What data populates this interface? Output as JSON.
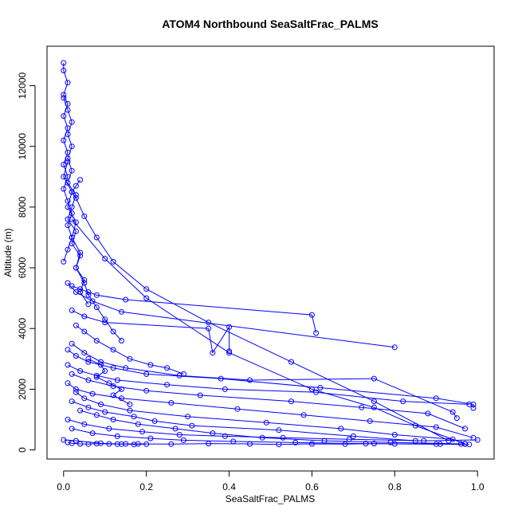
{
  "chart_data": {
    "type": "line",
    "title": "ATOM4 Northbound SeaSaltFrac_PALMS",
    "xlabel": "SeaSaltFrac_PALMS",
    "ylabel": "Altitude (m)",
    "xlim": [
      -0.04,
      1.04
    ],
    "ylim": [
      -300,
      13300
    ],
    "xticks": [
      "0.0",
      "0.2",
      "0.4",
      "0.6",
      "0.8",
      "1.0"
    ],
    "yticks": [
      "0",
      "2000",
      "4000",
      "6000",
      "8000",
      "10000",
      "12000"
    ],
    "grid": false,
    "legend": "none",
    "series_color": "#0000ff",
    "marker": "open-circle",
    "series": [
      {
        "x": [
          0.0,
          0.0,
          0.01,
          0.0,
          0.01,
          0.0,
          0.01,
          0.0,
          0.01,
          0.0,
          0.01,
          0.0,
          0.01,
          0.02,
          0.01,
          0.02,
          0.01,
          0.0
        ],
        "y": [
          12750,
          12500,
          12100,
          11700,
          11400,
          11000,
          10600,
          10200,
          9800,
          9400,
          9000,
          8600,
          8200,
          7800,
          7400,
          7000,
          6600,
          6200
        ]
      },
      {
        "x": [
          0.0,
          0.01,
          0.02,
          0.01,
          0.02,
          0.01,
          0.02,
          0.01,
          0.03,
          0.02,
          0.01,
          0.03,
          0.02,
          0.04,
          0.03,
          0.05,
          0.04,
          0.06
        ],
        "y": [
          11600,
          11200,
          10800,
          10400,
          10000,
          9600,
          9200,
          8800,
          8400,
          8000,
          7600,
          7200,
          6800,
          6400,
          6000,
          5600,
          5200,
          4800
        ]
      },
      {
        "x": [
          0.01,
          0.0,
          0.02,
          0.01,
          0.03,
          0.02,
          0.04,
          0.03,
          0.05,
          0.06,
          0.08,
          0.1,
          0.12,
          0.14
        ],
        "y": [
          9500,
          9000,
          8500,
          8000,
          7500,
          7000,
          6500,
          6000,
          5500,
          5100,
          4700,
          4300,
          3900,
          3600
        ]
      },
      {
        "x": [
          0.02,
          0.04,
          0.06,
          0.08,
          0.15,
          0.6,
          0.61
        ],
        "y": [
          5400,
          5300,
          5200,
          5100,
          4950,
          4450,
          3850
        ]
      },
      {
        "x": [
          0.01,
          0.03,
          0.07,
          0.14,
          0.8
        ],
        "y": [
          5500,
          5200,
          4900,
          4550,
          3380
        ]
      },
      {
        "x": [
          0.02,
          0.05,
          0.1,
          0.35,
          0.36,
          0.4,
          0.4
        ],
        "y": [
          4600,
          4400,
          4200,
          4000,
          3200,
          4050,
          3250
        ]
      },
      {
        "x": [
          0.01,
          0.03,
          0.06,
          0.12,
          0.2,
          0.38,
          0.62,
          0.9,
          0.99,
          0.99
        ],
        "y": [
          3300,
          3100,
          2900,
          2700,
          2500,
          2350,
          2050,
          1700,
          1500,
          1380
        ]
      },
      {
        "x": [
          0.02,
          0.05,
          0.09,
          0.15,
          0.28,
          0.45,
          0.75,
          0.94,
          0.95
        ],
        "y": [
          3500,
          3200,
          2900,
          2700,
          2450,
          2300,
          2350,
          1250,
          1050
        ]
      },
      {
        "x": [
          0.01,
          0.04,
          0.08,
          0.13,
          0.25,
          0.39,
          0.61,
          0.82,
          0.98
        ],
        "y": [
          2800,
          2600,
          2450,
          2300,
          2150,
          2000,
          1900,
          1600,
          1500
        ]
      },
      {
        "x": [
          0.02,
          0.06,
          0.12,
          0.2,
          0.33,
          0.55,
          0.72,
          0.88,
          0.97
        ],
        "y": [
          2500,
          2300,
          2100,
          1950,
          1800,
          1600,
          1400,
          1200,
          700
        ]
      },
      {
        "x": [
          0.01,
          0.03,
          0.07,
          0.14,
          0.26,
          0.42,
          0.58,
          0.74,
          0.9,
          0.99
        ],
        "y": [
          2200,
          2000,
          1850,
          1700,
          1550,
          1350,
          1150,
          950,
          750,
          400
        ]
      },
      {
        "x": [
          0.03,
          0.05,
          0.09,
          0.16,
          0.3,
          0.49,
          0.67,
          0.8,
          0.94,
          0.97
        ],
        "y": [
          1900,
          1700,
          1500,
          1300,
          1100,
          900,
          700,
          500,
          350,
          200
        ]
      },
      {
        "x": [
          0.02,
          0.06,
          0.1,
          0.17,
          0.22,
          0.31,
          0.52,
          0.7,
          0.85
        ],
        "y": [
          1600,
          1400,
          1250,
          1100,
          950,
          800,
          650,
          450,
          300
        ]
      },
      {
        "x": [
          0.04,
          0.08,
          0.12,
          0.18,
          0.27,
          0.36,
          0.48,
          0.63,
          0.79,
          0.96
        ],
        "y": [
          1300,
          1150,
          1000,
          850,
          700,
          550,
          400,
          300,
          250,
          200
        ]
      },
      {
        "x": [
          0.01,
          0.05,
          0.11,
          0.19,
          0.28,
          0.39,
          0.53,
          0.69,
          0.87,
          1.0
        ],
        "y": [
          1000,
          850,
          700,
          600,
          500,
          450,
          400,
          350,
          300,
          330
        ]
      },
      {
        "x": [
          0.02,
          0.07,
          0.13,
          0.21,
          0.29,
          0.41,
          0.56,
          0.73,
          0.91,
          0.98
        ],
        "y": [
          700,
          550,
          450,
          380,
          320,
          280,
          240,
          210,
          190,
          180
        ]
      },
      {
        "x": [
          0.0,
          0.03,
          0.09,
          0.14,
          0.18,
          0.26,
          0.35,
          0.45,
          0.52,
          0.6,
          0.68,
          0.75,
          0.8,
          0.9,
          0.97
        ],
        "y": [
          330,
          300,
          220,
          190,
          200,
          190,
          210,
          200,
          180,
          200,
          190,
          210,
          200,
          190,
          200
        ]
      },
      {
        "x": [
          0.01,
          0.02,
          0.04,
          0.06,
          0.08,
          0.11,
          0.13,
          0.15,
          0.17,
          0.2
        ],
        "y": [
          250,
          220,
          200,
          190,
          210,
          200,
          190,
          200,
          180,
          190
        ]
      },
      {
        "x": [
          0.04,
          0.03,
          0.02,
          0.03,
          0.05,
          0.08,
          0.12,
          0.2,
          0.35,
          0.55,
          0.75,
          0.93
        ],
        "y": [
          8900,
          8700,
          8500,
          8300,
          7700,
          7000,
          6200,
          5300,
          4200,
          2900,
          1600,
          300
        ]
      },
      {
        "x": [
          0.02,
          0.1,
          0.2,
          0.4,
          0.6,
          0.75,
          0.85,
          0.97
        ],
        "y": [
          7600,
          6300,
          5000,
          3200,
          2000,
          1400,
          800,
          200
        ]
      },
      {
        "x": [
          0.03,
          0.05,
          0.08,
          0.12,
          0.16,
          0.21,
          0.25,
          0.29
        ],
        "y": [
          4100,
          3900,
          3600,
          3300,
          3000,
          2800,
          2700,
          2500
        ]
      },
      {
        "x": [
          0.06,
          0.09,
          0.1,
          0.08,
          0.11,
          0.14,
          0.12,
          0.16
        ],
        "y": [
          3000,
          2800,
          2600,
          2400,
          2200,
          2000,
          1800,
          1500
        ]
      }
    ]
  }
}
